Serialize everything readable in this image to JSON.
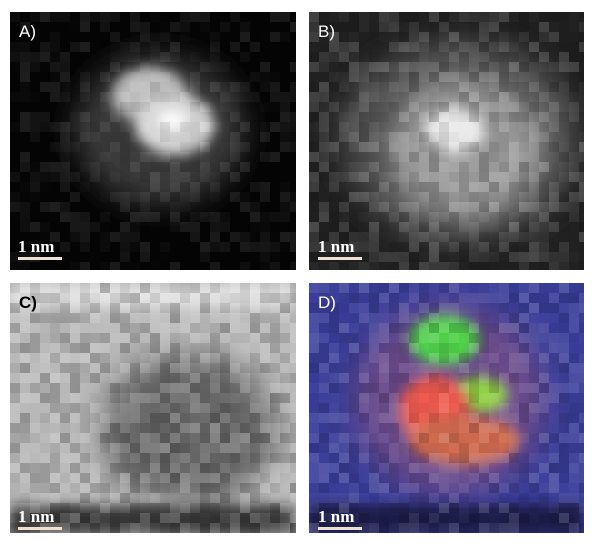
{
  "panels": [
    {
      "label": "A)",
      "scale": "1 nm"
    },
    {
      "label": "B)",
      "scale": "1 nm"
    },
    {
      "label": "C)",
      "scale": "1 nm"
    },
    {
      "label": "D)",
      "scale": "1 nm"
    }
  ]
}
